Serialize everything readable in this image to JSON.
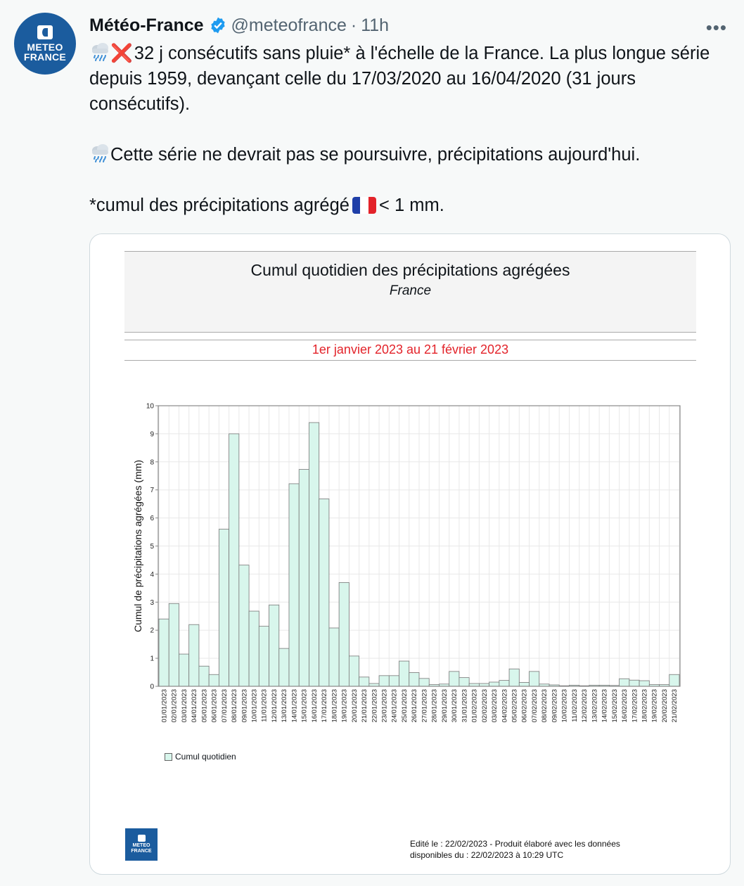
{
  "tweet": {
    "avatar_line1": "METEO",
    "avatar_line2": "FRANCE",
    "author_name": "Météo-France",
    "handle": "@meteofrance",
    "separator": "·",
    "time": "11h",
    "more_icon": "more-horizontal-icon",
    "verified_color": "#1d9bf0",
    "text_line1": "32 j consécutifs sans pluie* à l'échelle de la France. La plus longue série depuis 1959, devançant celle du 17/03/2020 au 16/04/2020 (31 jours consécutifs).",
    "text_line2": "Cette série ne devrait pas se poursuivre, précipitations  aujourd'hui.",
    "text_line3a": "*cumul des précipitations agrégé",
    "text_line3b": "< 1 mm."
  },
  "card": {
    "title": "Cumul quotidien des précipitations agrégées",
    "subtitle": "France",
    "period": "1er janvier 2023 au 21 février 2023",
    "legend_label": "Cumul quotidien",
    "logo_line1": "METEO",
    "logo_line2": "FRANCE",
    "footer_line1": "Edité le : 22/02/2023 - Produit élaboré avec les données",
    "footer_line2": "disponibles du : 22/02/2023 à 10:29 UTC"
  },
  "chart_data": {
    "type": "bar",
    "ylabel": "Cumul de précipitations agrégées (mm)",
    "ylim": [
      0,
      10
    ],
    "yticks": [
      0,
      1,
      2,
      3,
      4,
      5,
      6,
      7,
      8,
      9,
      10
    ],
    "grid": true,
    "bar_color": "#d8f6ec",
    "legend_position": "bottom-left",
    "series": [
      {
        "name": "Cumul quotidien",
        "values": [
          2.4,
          2.95,
          1.15,
          2.2,
          0.72,
          0.42,
          5.6,
          9.0,
          4.32,
          2.68,
          2.14,
          2.9,
          1.35,
          7.22,
          7.73,
          9.4,
          6.68,
          2.08,
          3.7,
          1.08,
          0.33,
          0.1,
          0.38,
          0.38,
          0.9,
          0.49,
          0.28,
          0.06,
          0.08,
          0.53,
          0.31,
          0.1,
          0.1,
          0.15,
          0.21,
          0.62,
          0.14,
          0.53,
          0.08,
          0.05,
          0.02,
          0.04,
          0.02,
          0.04,
          0.04,
          0.03,
          0.27,
          0.22,
          0.2,
          0.06,
          0.06,
          0.42
        ]
      }
    ],
    "categories": [
      "01/01/2023",
      "02/01/2023",
      "03/01/2023",
      "04/01/2023",
      "05/01/2023",
      "06/01/2023",
      "07/01/2023",
      "08/01/2023",
      "09/01/2023",
      "10/01/2023",
      "11/01/2023",
      "12/01/2023",
      "13/01/2023",
      "14/01/2023",
      "15/01/2023",
      "16/01/2023",
      "17/01/2023",
      "18/01/2023",
      "19/01/2023",
      "20/01/2023",
      "21/01/2023",
      "22/01/2023",
      "23/01/2023",
      "24/01/2023",
      "25/01/2023",
      "26/01/2023",
      "27/01/2023",
      "28/01/2023",
      "29/01/2023",
      "30/01/2023",
      "31/01/2023",
      "01/02/2023",
      "02/02/2023",
      "03/02/2023",
      "04/02/2023",
      "05/02/2023",
      "06/02/2023",
      "07/02/2023",
      "08/02/2023",
      "09/02/2023",
      "10/02/2023",
      "11/02/2023",
      "12/02/2023",
      "13/02/2023",
      "14/02/2023",
      "15/02/2023",
      "16/02/2023",
      "17/02/2023",
      "18/02/2023",
      "19/02/2023",
      "20/02/2023",
      "21/02/2023"
    ]
  }
}
